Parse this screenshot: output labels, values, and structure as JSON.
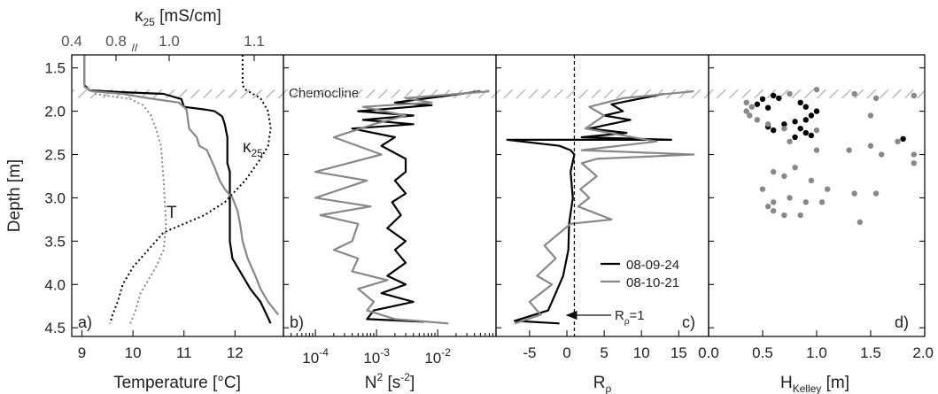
{
  "figure": {
    "ylabel": "Depth [m]",
    "y_ticks": [
      "1.5",
      "2.0",
      "2.5",
      "3.0",
      "3.5",
      "4.0",
      "4.5"
    ],
    "chemocline_label": "Chemocline",
    "chemocline_depth_range": [
      1.75,
      1.85
    ],
    "colors": {
      "series_2008_09_24": "#000000",
      "series_2008_10_21": "#888888",
      "hatch": "#bbbbbb"
    }
  },
  "panels": {
    "a": {
      "letter": "a)",
      "xlabel": "Temperature [°C]",
      "x_ticks": [
        "9",
        "10",
        "11",
        "12"
      ],
      "top_label_main": "κ",
      "top_label_sub": "25",
      "top_label_unit": " [mS/cm]",
      "top_ticks": [
        "0.4",
        "0.8",
        "1.0",
        "1.1"
      ],
      "break_mark": "//",
      "annot_T": "T",
      "annot_k_main": "κ",
      "annot_k_sub": "25"
    },
    "b": {
      "letter": "b)",
      "xlabel_main": "N",
      "xlabel_sup": "2",
      "xlabel_unit_a": " [s",
      "xlabel_unit_sup": "-2",
      "xlabel_unit_b": "]",
      "x_tick_labels": [
        {
          "base": "10",
          "exp": "-4"
        },
        {
          "base": "10",
          "exp": "-3"
        },
        {
          "base": "10",
          "exp": "-2"
        }
      ]
    },
    "c": {
      "letter": "c)",
      "xlabel_main": "R",
      "xlabel_sub": "ρ",
      "x_ticks": [
        "-5",
        "0",
        "5",
        "10",
        "15"
      ],
      "annot_main": "R",
      "annot_sub": "ρ",
      "annot_rest": "=1",
      "legend": [
        "08-09-24",
        "08-10-21"
      ]
    },
    "d": {
      "letter": "d)",
      "xlabel_main": "H",
      "xlabel_sub": "Kelley",
      "xlabel_unit": " [m]",
      "x_ticks": [
        "0.0",
        "0.5",
        "1.0",
        "1.5",
        "2.0"
      ]
    }
  },
  "chart_data": [
    {
      "panel": "a",
      "type": "line",
      "xlabel": "Temperature [°C]",
      "ylabel": "Depth [m]",
      "xlim": [
        8.8,
        12.95
      ],
      "ylim": [
        4.6,
        1.35
      ],
      "x2label": "κ25 [mS/cm]",
      "x2_ticks": [
        0.4,
        0.8,
        1.0,
        1.1
      ],
      "series": [
        {
          "name": "T 08-09-24",
          "style": "solid",
          "color": "#000000",
          "points": [
            [
              9.05,
              1.35
            ],
            [
              9.05,
              1.7
            ],
            [
              9.15,
              1.76
            ],
            [
              9.8,
              1.78
            ],
            [
              10.6,
              1.8
            ],
            [
              10.95,
              1.86
            ],
            [
              11.0,
              1.95
            ],
            [
              11.4,
              1.98
            ],
            [
              11.6,
              2.0
            ],
            [
              11.75,
              2.06
            ],
            [
              11.8,
              2.15
            ],
            [
              11.85,
              2.3
            ],
            [
              11.85,
              2.6
            ],
            [
              11.9,
              2.7
            ],
            [
              11.9,
              3.5
            ],
            [
              11.95,
              3.7
            ],
            [
              12.1,
              3.85
            ],
            [
              12.3,
              4.05
            ],
            [
              12.5,
              4.2
            ],
            [
              12.7,
              4.45
            ]
          ]
        },
        {
          "name": "T 08-10-21",
          "style": "solid",
          "color": "#888888",
          "points": [
            [
              9.05,
              1.35
            ],
            [
              9.05,
              1.72
            ],
            [
              9.2,
              1.77
            ],
            [
              9.8,
              1.8
            ],
            [
              10.3,
              1.85
            ],
            [
              10.9,
              1.9
            ],
            [
              11.05,
              1.98
            ],
            [
              11.1,
              2.2
            ],
            [
              11.25,
              2.3
            ],
            [
              11.3,
              2.4
            ],
            [
              11.45,
              2.45
            ],
            [
              11.6,
              2.65
            ],
            [
              11.7,
              2.8
            ],
            [
              11.8,
              2.9
            ],
            [
              11.95,
              3.0
            ],
            [
              12.05,
              3.15
            ],
            [
              12.1,
              3.3
            ],
            [
              12.15,
              3.5
            ],
            [
              12.25,
              3.7
            ],
            [
              12.4,
              3.9
            ],
            [
              12.5,
              4.05
            ],
            [
              12.65,
              4.2
            ],
            [
              12.85,
              4.35
            ]
          ]
        },
        {
          "name": "κ25 08-09-24",
          "style": "dotted",
          "color": "#000000",
          "points": [
            [
              12.15,
              1.35
            ],
            [
              12.15,
              1.7
            ],
            [
              12.2,
              1.75
            ],
            [
              12.5,
              1.85
            ],
            [
              12.65,
              2.0
            ],
            [
              12.7,
              2.2
            ],
            [
              12.65,
              2.4
            ],
            [
              12.5,
              2.55
            ],
            [
              12.2,
              2.8
            ],
            [
              11.8,
              3.05
            ],
            [
              11.4,
              3.2
            ],
            [
              11.0,
              3.3
            ],
            [
              10.6,
              3.4
            ],
            [
              10.3,
              3.6
            ],
            [
              10.0,
              3.8
            ],
            [
              9.8,
              4.0
            ],
            [
              9.7,
              4.2
            ],
            [
              9.6,
              4.35
            ],
            [
              9.55,
              4.45
            ]
          ]
        },
        {
          "name": "κ25 08-10-21",
          "style": "dotted",
          "color": "#888888",
          "points": [
            [
              9.25,
              1.8
            ],
            [
              9.6,
              1.83
            ],
            [
              9.95,
              1.86
            ],
            [
              10.2,
              1.93
            ],
            [
              10.35,
              2.05
            ],
            [
              10.45,
              2.2
            ],
            [
              10.55,
              2.4
            ],
            [
              10.6,
              2.8
            ],
            [
              10.65,
              3.3
            ],
            [
              10.6,
              3.6
            ],
            [
              10.45,
              3.8
            ],
            [
              10.3,
              3.95
            ],
            [
              10.15,
              4.1
            ],
            [
              10.05,
              4.3
            ],
            [
              9.95,
              4.45
            ]
          ]
        }
      ]
    },
    {
      "panel": "b",
      "type": "line",
      "xlabel": "N² [s⁻²]",
      "xscale": "log",
      "xlim": [
        3e-05,
        0.09
      ],
      "ylim": [
        4.6,
        1.35
      ],
      "series": [
        {
          "name": "08-09-24",
          "color": "#000000",
          "points": [
            [
              0.05,
              1.77
            ],
            [
              0.002,
              1.9
            ],
            [
              0.008,
              1.93
            ],
            [
              0.0005,
              2.0
            ],
            [
              0.004,
              2.05
            ],
            [
              0.0006,
              2.1
            ],
            [
              0.004,
              2.15
            ],
            [
              0.0004,
              2.2
            ],
            [
              0.002,
              2.3
            ],
            [
              0.0012,
              2.4
            ],
            [
              0.003,
              2.55
            ],
            [
              0.003,
              2.7
            ],
            [
              0.002,
              2.8
            ],
            [
              0.003,
              2.95
            ],
            [
              0.0018,
              3.05
            ],
            [
              0.0025,
              3.2
            ],
            [
              0.0015,
              3.35
            ],
            [
              0.003,
              3.5
            ],
            [
              0.002,
              3.6
            ],
            [
              0.003,
              3.75
            ],
            [
              0.0015,
              3.9
            ],
            [
              0.003,
              4.0
            ],
            [
              0.0012,
              4.1
            ],
            [
              0.004,
              4.2
            ],
            [
              0.0009,
              4.3
            ],
            [
              0.0007,
              4.4
            ],
            [
              0.006,
              4.43
            ]
          ]
        },
        {
          "name": "08-10-21",
          "color": "#888888",
          "points": [
            [
              0.07,
              1.77
            ],
            [
              0.003,
              1.85
            ],
            [
              0.008,
              1.9
            ],
            [
              0.0006,
              1.95
            ],
            [
              0.003,
              2.05
            ],
            [
              0.0009,
              2.15
            ],
            [
              0.0002,
              2.3
            ],
            [
              0.0012,
              2.5
            ],
            [
              0.0001,
              2.7
            ],
            [
              0.0007,
              2.8
            ],
            [
              0.0001,
              3.0
            ],
            [
              0.0008,
              3.1
            ],
            [
              0.00012,
              3.2
            ],
            [
              0.0005,
              3.3
            ],
            [
              0.0004,
              3.5
            ],
            [
              0.0002,
              3.6
            ],
            [
              0.0005,
              3.7
            ],
            [
              0.0004,
              3.85
            ],
            [
              0.0015,
              3.95
            ],
            [
              0.0005,
              4.05
            ],
            [
              0.0009,
              4.2
            ],
            [
              0.0007,
              4.3
            ],
            [
              0.002,
              4.4
            ],
            [
              0.015,
              4.45
            ]
          ]
        }
      ]
    },
    {
      "panel": "c",
      "type": "line",
      "xlabel": "Rρ",
      "xlim": [
        -9.5,
        19
      ],
      "ylim": [
        4.6,
        1.35
      ],
      "reference_line": {
        "x": 1,
        "style": "dashed",
        "label": "Rρ=1"
      },
      "series": [
        {
          "name": "08-09-24",
          "color": "#000000",
          "points": [
            [
              13,
              1.8
            ],
            [
              6,
              1.92
            ],
            [
              7.5,
              2.0
            ],
            [
              5,
              2.05
            ],
            [
              8.5,
              2.1
            ],
            [
              3,
              2.2
            ],
            [
              8,
              2.25
            ],
            [
              2,
              2.3
            ],
            [
              14,
              2.33
            ],
            [
              -8,
              2.33
            ],
            [
              -1,
              2.4
            ],
            [
              0.5,
              2.45
            ],
            [
              1,
              2.5
            ],
            [
              0.5,
              2.7
            ],
            [
              0.8,
              3.0
            ],
            [
              0.3,
              3.3
            ],
            [
              0.2,
              3.6
            ],
            [
              -0.5,
              3.9
            ],
            [
              -1.5,
              4.1
            ],
            [
              -2.5,
              4.3
            ],
            [
              -7,
              4.42
            ],
            [
              -1,
              4.45
            ]
          ]
        },
        {
          "name": "08-10-21",
          "color": "#888888",
          "points": [
            [
              17,
              1.77
            ],
            [
              7.5,
              1.85
            ],
            [
              3,
              1.95
            ],
            [
              5,
              2.05
            ],
            [
              2.5,
              2.2
            ],
            [
              12,
              2.35
            ],
            [
              2,
              2.45
            ],
            [
              17,
              2.5
            ],
            [
              4,
              2.55
            ],
            [
              2,
              2.6
            ],
            [
              4,
              2.75
            ],
            [
              1.8,
              2.9
            ],
            [
              3,
              3.0
            ],
            [
              1.5,
              3.1
            ],
            [
              6,
              3.25
            ],
            [
              0.5,
              3.3
            ],
            [
              -3,
              3.55
            ],
            [
              -1.5,
              3.7
            ],
            [
              -4,
              3.9
            ],
            [
              -2,
              4.0
            ],
            [
              -5,
              4.2
            ],
            [
              -3.5,
              4.35
            ],
            [
              -7,
              4.45
            ]
          ]
        }
      ]
    },
    {
      "panel": "d",
      "type": "scatter",
      "xlabel": "HKelley [m]",
      "xlim": [
        0,
        2
      ],
      "ylim": [
        4.6,
        1.35
      ],
      "series": [
        {
          "name": "08-09-24",
          "color": "#000000",
          "points": [
            [
              0.6,
              1.82
            ],
            [
              0.5,
              1.86
            ],
            [
              0.45,
              1.92
            ],
            [
              0.55,
              1.96
            ],
            [
              0.65,
              1.85
            ],
            [
              0.85,
              1.9
            ],
            [
              0.9,
              1.95
            ],
            [
              1.0,
              2.0
            ],
            [
              0.95,
              2.05
            ],
            [
              0.9,
              2.1
            ],
            [
              0.8,
              2.12
            ],
            [
              0.7,
              2.15
            ],
            [
              0.55,
              2.18
            ],
            [
              0.6,
              2.22
            ],
            [
              0.85,
              2.2
            ],
            [
              0.9,
              2.25
            ],
            [
              0.95,
              2.28
            ],
            [
              1.8,
              2.32
            ],
            [
              0.8,
              2.3
            ]
          ]
        },
        {
          "name": "08-10-21",
          "color": "#888888",
          "points": [
            [
              0.4,
              1.95
            ],
            [
              0.35,
              2.0
            ],
            [
              0.38,
              2.05
            ],
            [
              0.45,
              2.1
            ],
            [
              0.55,
              2.15
            ],
            [
              0.7,
              2.2
            ],
            [
              1.0,
              2.22
            ],
            [
              0.75,
              1.8
            ],
            [
              0.35,
              1.9
            ],
            [
              1.0,
              1.75
            ],
            [
              1.35,
              1.8
            ],
            [
              1.55,
              1.85
            ],
            [
              1.9,
              1.82
            ],
            [
              1.5,
              2.05
            ],
            [
              0.75,
              2.35
            ],
            [
              1.5,
              2.4
            ],
            [
              1.3,
              2.45
            ],
            [
              1.6,
              2.5
            ],
            [
              1.75,
              2.35
            ],
            [
              1.0,
              2.45
            ],
            [
              1.9,
              2.5
            ],
            [
              0.6,
              2.7
            ],
            [
              0.8,
              2.65
            ],
            [
              0.7,
              2.75
            ],
            [
              0.95,
              2.8
            ],
            [
              0.5,
              2.9
            ],
            [
              1.1,
              2.9
            ],
            [
              1.35,
              2.95
            ],
            [
              1.55,
              2.95
            ],
            [
              0.75,
              3.0
            ],
            [
              0.9,
              3.05
            ],
            [
              1.05,
              3.05
            ],
            [
              0.55,
              3.1
            ],
            [
              0.6,
              3.15
            ],
            [
              0.7,
              3.2
            ],
            [
              0.85,
              3.2
            ],
            [
              1.4,
              3.28
            ],
            [
              0.6,
              3.05
            ],
            [
              1.9,
              2.6
            ]
          ]
        }
      ]
    }
  ]
}
